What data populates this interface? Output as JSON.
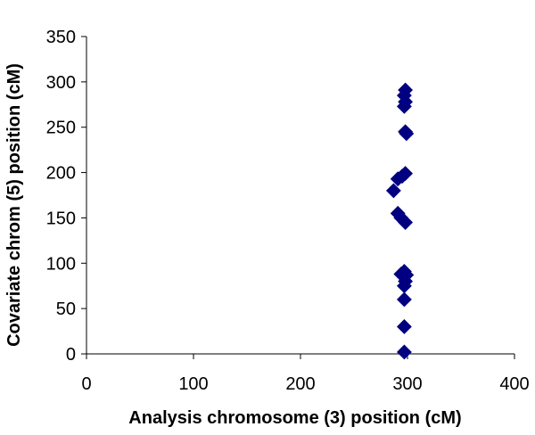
{
  "chart_data": {
    "type": "scatter",
    "title": "",
    "xlabel": "Analysis chromosome (3) position (cM)",
    "ylabel": "Covariate chrom (5) position (cM)",
    "xlim": [
      0,
      400
    ],
    "ylim": [
      0,
      350
    ],
    "x_ticks": [
      0,
      100,
      200,
      300,
      400
    ],
    "y_ticks": [
      0,
      50,
      100,
      150,
      200,
      250,
      300,
      350
    ],
    "x_tick_labels": [
      "0",
      "100",
      "200",
      "300",
      "400"
    ],
    "y_tick_labels": [
      "0",
      "50",
      "100",
      "150",
      "200",
      "250",
      "300",
      "350"
    ],
    "grid": false,
    "legend": "none",
    "marker": "diamond",
    "marker_color": "#000080",
    "series": [
      {
        "points": [
          {
            "x": 298,
            "y": 291
          },
          {
            "x": 297,
            "y": 285
          },
          {
            "x": 298,
            "y": 278
          },
          {
            "x": 297,
            "y": 273
          },
          {
            "x": 298,
            "y": 245
          },
          {
            "x": 299,
            "y": 243
          },
          {
            "x": 298,
            "y": 199
          },
          {
            "x": 295,
            "y": 196
          },
          {
            "x": 291,
            "y": 193
          },
          {
            "x": 287,
            "y": 180
          },
          {
            "x": 291,
            "y": 155
          },
          {
            "x": 294,
            "y": 150
          },
          {
            "x": 298,
            "y": 145
          },
          {
            "x": 297,
            "y": 91
          },
          {
            "x": 294,
            "y": 88
          },
          {
            "x": 299,
            "y": 87
          },
          {
            "x": 298,
            "y": 80
          },
          {
            "x": 297,
            "y": 75
          },
          {
            "x": 297,
            "y": 60
          },
          {
            "x": 297,
            "y": 30
          },
          {
            "x": 297,
            "y": 2
          }
        ]
      }
    ]
  }
}
